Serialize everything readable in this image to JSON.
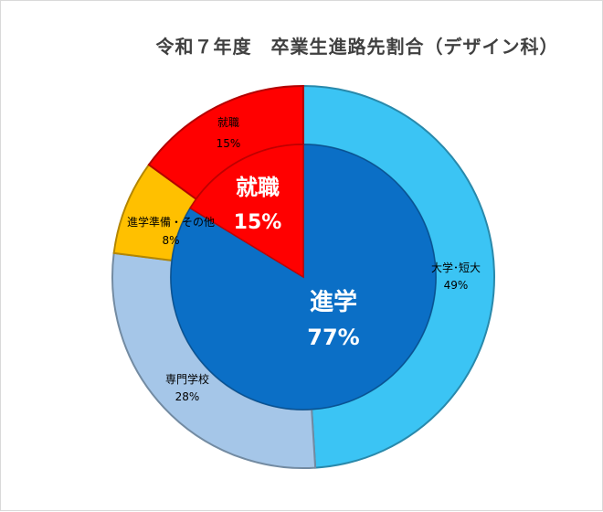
{
  "chart_data": {
    "type": "pie",
    "title": "令和７年度　卒業生進路先割合（デザイン科）",
    "inner": {
      "categories": [
        "進学",
        "就職"
      ],
      "values": [
        77,
        15
      ],
      "labels": [
        "77%",
        "15%"
      ],
      "colors": [
        "#0b6fc6",
        "#ff0000"
      ]
    },
    "outer": {
      "categories": [
        "大学･短大",
        "専門学校",
        "進学準備・その他",
        "就職"
      ],
      "values": [
        49,
        28,
        8,
        15
      ],
      "labels": [
        "49%",
        "28%",
        "8%",
        "15%"
      ],
      "colors": [
        "#3bc4f4",
        "#a5c6e8",
        "#ffc000",
        "#ff0000"
      ]
    },
    "legend": "none"
  }
}
